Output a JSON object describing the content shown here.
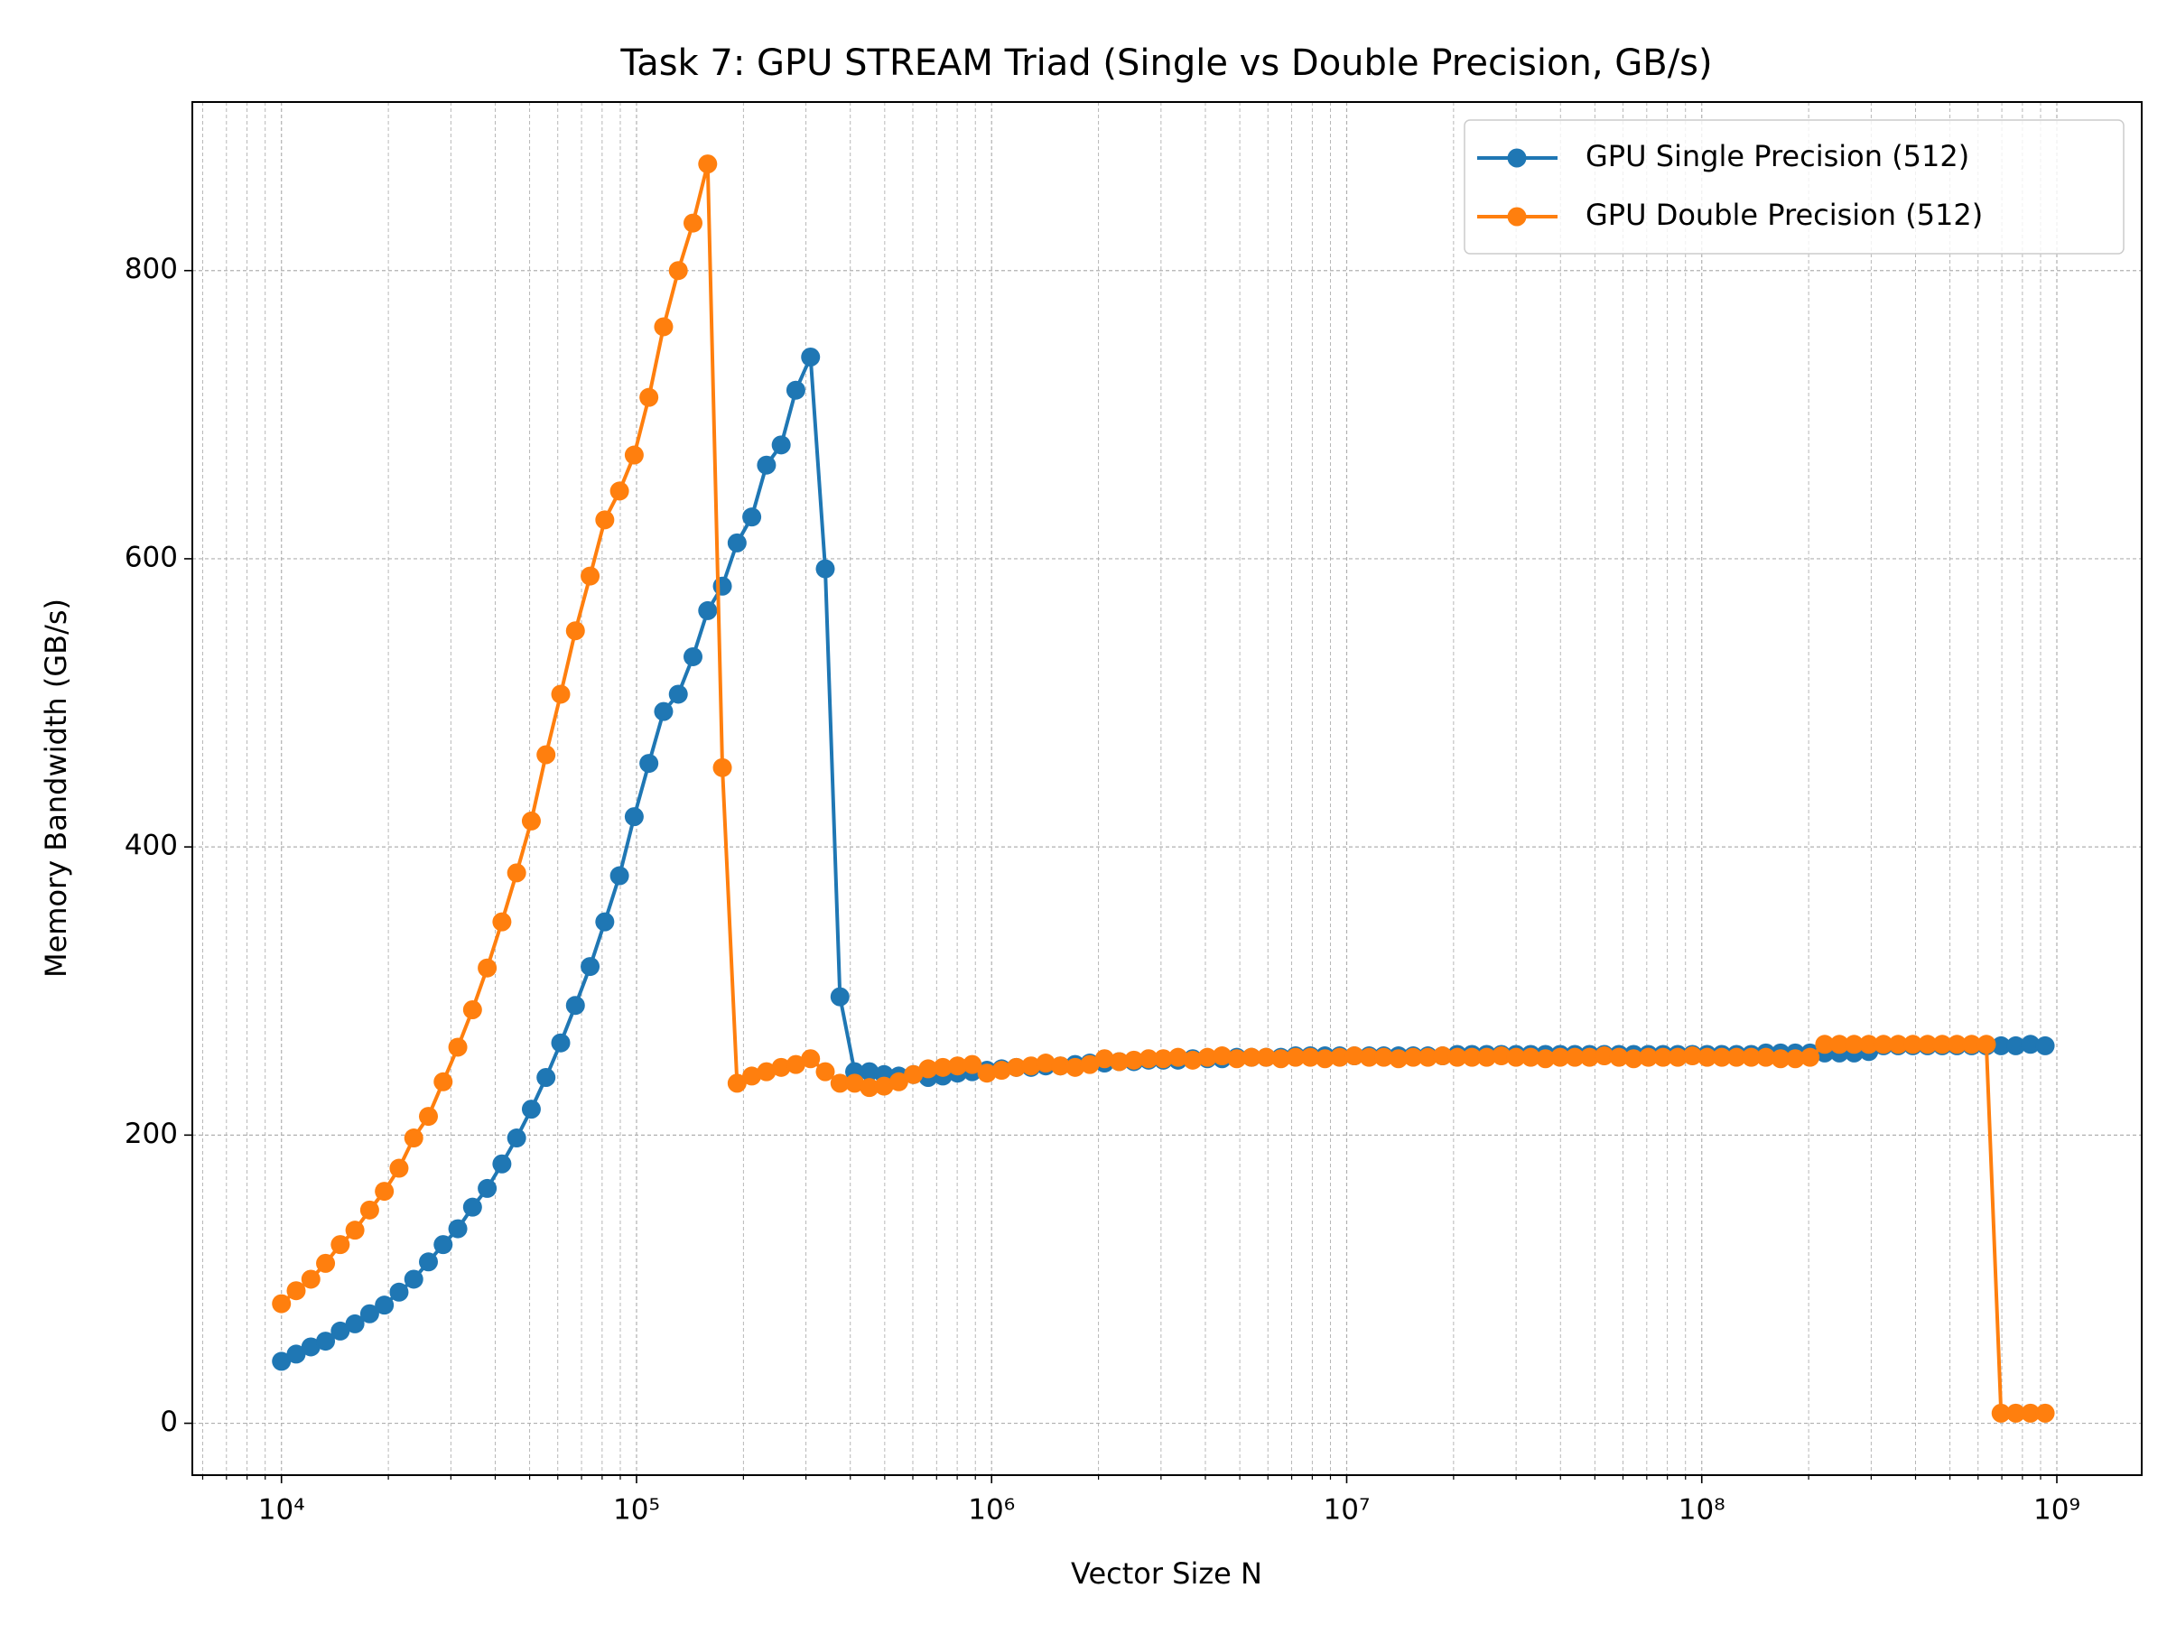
{
  "chart_data": {
    "type": "line",
    "title": "Task 7: GPU STREAM Triad (Single vs Double Precision, GB/s)",
    "xlabel": "Vector Size N",
    "ylabel": "Memory Bandwidth (GB/s)",
    "xscale": "log",
    "grid": true,
    "minor_grid": true,
    "legend": "upper right",
    "marker": "o",
    "xlim": [
      5610,
      1734000000
    ],
    "ylim": [
      -36,
      917
    ],
    "xticks": [
      {
        "value": 10000,
        "label": "10⁴"
      },
      {
        "value": 100000,
        "label": "10⁵"
      },
      {
        "value": 1000000,
        "label": "10⁶"
      },
      {
        "value": 10000000,
        "label": "10⁷"
      },
      {
        "value": 100000000,
        "label": "10⁸"
      },
      {
        "value": 1000000000,
        "label": "10⁹"
      }
    ],
    "yticks": [
      0,
      200,
      400,
      600,
      800
    ],
    "x": [
      10000,
      11000,
      12100,
      13310,
      14641,
      16105,
      17716,
      19487,
      21436,
      23579,
      25937,
      28531,
      31384,
      34523,
      37975,
      41772,
      45950,
      50545,
      55599,
      61159,
      67275,
      74003,
      81403,
      89543,
      98497,
      108347,
      119182,
      131100,
      144210,
      158631,
      174494,
      191943,
      211138,
      232252,
      255477,
      281024,
      309127,
      340039,
      374043,
      411448,
      452593,
      497852,
      547637,
      602401,
      662641,
      728905,
      801795,
      881975,
      970172,
      1067190,
      1173909,
      1291299,
      1420429,
      1562472,
      1718719,
      1890591,
      2079651,
      2287616,
      2516377,
      2768015,
      3044816,
      3349298,
      3684228,
      4052651,
      4457916,
      4903707,
      5394078,
      5933486,
      6526834,
      7179518,
      7897470,
      8687217,
      9555938,
      10511532,
      11562685,
      12718954,
      13990849,
      15389934,
      16928927,
      18621820,
      20484002,
      22532402,
      24785643,
      27264207,
      29990628,
      32989690,
      36288659,
      39917525,
      43909278,
      48300206,
      53130226,
      58443249,
      64287574,
      70716331,
      77787964,
      85566760,
      94123437,
      103535780,
      113889360,
      125278290,
      137806120,
      151586730,
      166745400,
      183419940,
      201761940,
      221938130,
      244131940,
      268545140,
      295399650,
      324939620,
      357433580,
      393176940,
      432494630,
      475744100,
      523318510,
      575650360,
      633215390,
      696536930,
      766190630,
      842809690,
      927090660
    ],
    "series": [
      {
        "name": "GPU Single Precision (512)",
        "color": "#1f77b4",
        "values": [
          43,
          48,
          53,
          57,
          64,
          69,
          76,
          82,
          91,
          100,
          112,
          124,
          135,
          150,
          163,
          180,
          198,
          218,
          240,
          264,
          290,
          317,
          348,
          380,
          421,
          458,
          494,
          506,
          532,
          564,
          581,
          611,
          629,
          665,
          679,
          717,
          740,
          593,
          296,
          244,
          244,
          242,
          241,
          242,
          240,
          241,
          243,
          244,
          245,
          246,
          247,
          247,
          248,
          248,
          249,
          250,
          250,
          251,
          251,
          252,
          252,
          252,
          253,
          253,
          253,
          254,
          254,
          254,
          254,
          255,
          255,
          255,
          255,
          255,
          255,
          255,
          255,
          255,
          255,
          255,
          256,
          256,
          256,
          256,
          256,
          256,
          256,
          256,
          256,
          256,
          256,
          256,
          256,
          256,
          256,
          256,
          256,
          256,
          256,
          256,
          256,
          257,
          257,
          257,
          257,
          257,
          257,
          257,
          258,
          262,
          262,
          262,
          262,
          262,
          262,
          262,
          262,
          262,
          262,
          263,
          262
        ]
      },
      {
        "name": "GPU Double Precision (512)",
        "color": "#ff7f0e",
        "values": [
          83,
          92,
          100,
          111,
          124,
          134,
          148,
          161,
          177,
          198,
          213,
          237,
          261,
          287,
          316,
          348,
          382,
          418,
          464,
          506,
          550,
          588,
          627,
          647,
          672,
          712,
          761,
          800,
          833,
          874,
          455,
          236,
          241,
          244,
          247,
          249,
          253,
          244,
          236,
          236,
          233,
          234,
          237,
          242,
          246,
          247,
          248,
          249,
          243,
          245,
          247,
          248,
          250,
          248,
          247,
          249,
          253,
          251,
          252,
          253,
          253,
          254,
          252,
          254,
          255,
          253,
          254,
          254,
          253,
          254,
          254,
          253,
          254,
          255,
          254,
          254,
          253,
          254,
          254,
          255,
          254,
          254,
          254,
          255,
          254,
          254,
          253,
          254,
          254,
          254,
          255,
          254,
          253,
          254,
          254,
          254,
          255,
          254,
          254,
          254,
          254,
          254,
          253,
          253,
          254,
          263,
          263,
          263,
          263,
          263,
          263,
          263,
          263,
          263,
          263,
          263,
          263,
          7,
          7,
          7,
          7
        ]
      }
    ]
  }
}
